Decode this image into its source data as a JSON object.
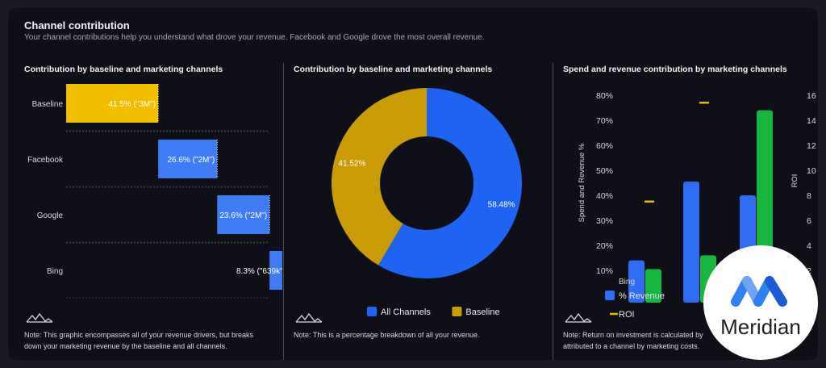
{
  "header": {
    "title": "Channel contribution",
    "subtitle": "Your channel contributions help you understand what drove your revenue. Facebook and Google drove the most overall revenue."
  },
  "panels": {
    "left": {
      "title": "Contribution by baseline and marketing channels",
      "note": "Note: This graphic encompasses all of your revenue drivers, but breaks down your marketing revenue by the baseline and all channels."
    },
    "middle": {
      "title": "Contribution by baseline and marketing channels",
      "note": "Note: This is a percentage breakdown of all your revenue."
    },
    "right": {
      "title": "Spend and revenue contribution by marketing channels",
      "note": "Note: Return on investment is calculated by",
      "note_line2": "attributed to a channel by marketing costs."
    }
  },
  "overlay": {
    "brand": "Meridian"
  },
  "colors": {
    "gold": "#e9b800",
    "blue": "#2f6cf6",
    "green": "#17b640",
    "donut_gold": "#c99c07",
    "donut_blue": "#1f63f2"
  },
  "chart_data": [
    {
      "type": "bar",
      "orientation": "waterfall",
      "categories": [
        "Baseline",
        "Facebook",
        "Google",
        "Bing"
      ],
      "values": [
        41.5,
        26.6,
        23.6,
        8.3
      ],
      "labels": [
        "41.5% (\"3M\")",
        "26.6% (\"2M\")",
        "23.6% (\"2M\")",
        "8.3% (\"639k\")"
      ],
      "colors": [
        "#f2be00",
        "#3e7bf4",
        "#3e7bf4",
        "#3e7bf4"
      ]
    },
    {
      "type": "pie",
      "variant": "donut",
      "slices": [
        {
          "name": "All Channels",
          "value": 58.48,
          "label": "58.48%"
        },
        {
          "name": "Baseline",
          "value": 41.52,
          "label": "41.52%"
        }
      ],
      "legend": [
        "All Channels",
        "Baseline"
      ],
      "legend_placement": "bottom"
    },
    {
      "type": "bar",
      "ylabel": "Spend and Revenue %",
      "y2label": "ROI",
      "ylim": [
        10,
        80
      ],
      "y2lim": [
        2,
        16
      ],
      "yticks": [
        "10%",
        "20%",
        "30%",
        "40%",
        "50%",
        "60%",
        "70%",
        "80%"
      ],
      "y2ticks": [
        "2",
        "4",
        "6",
        "8",
        "10",
        "12",
        "14",
        "16"
      ],
      "categories": [
        "Bing",
        "",
        ""
      ],
      "series": [
        {
          "name": "% Revenue",
          "values": [
            14,
            45.5,
            40
          ]
        },
        {
          "name": "",
          "values": [
            10.5,
            16,
            74
          ]
        }
      ],
      "roi": {
        "name": "ROI",
        "values": [
          7.5,
          15.4,
          null
        ]
      },
      "legend": [
        "% Revenue",
        "ROI"
      ],
      "legend_placement": "bottom"
    }
  ]
}
